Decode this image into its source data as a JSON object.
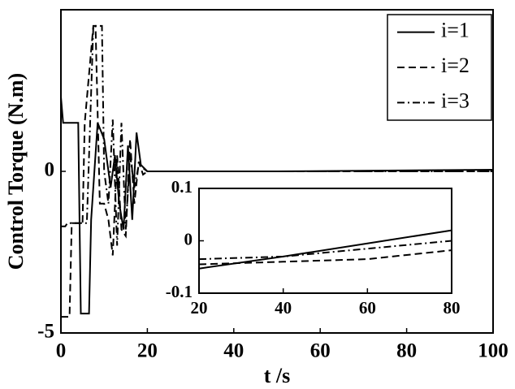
{
  "chart_data": [
    {
      "type": "line",
      "ylabel": "Control Torque (N.m)",
      "xlabel": "t /s",
      "xlim": [
        0,
        100
      ],
      "xticks": [
        0,
        20,
        40,
        60,
        80,
        100
      ],
      "ylim": [
        -5,
        5
      ],
      "yticks": [
        -5,
        0
      ],
      "legend": "upper right",
      "series": [
        {
          "name": "i=1",
          "color": "#000000",
          "dash": "solid",
          "x": [
            0,
            0.5,
            4,
            4.3,
            4.6,
            6.5,
            7,
            8.5,
            10,
            11.5,
            12.5,
            13.5,
            14.5,
            15.5,
            16.5,
            17.5,
            18.5,
            20,
            50,
            100
          ],
          "values": [
            2.3,
            1.5,
            1.5,
            -1.5,
            -4.4,
            -4.4,
            -1.5,
            1.5,
            1,
            -0.5,
            0.5,
            -1,
            -1.8,
            0.8,
            -1.5,
            1.2,
            0.2,
            0,
            0,
            0.05
          ]
        },
        {
          "name": "i=2",
          "color": "#000000",
          "dash": "dashed",
          "x": [
            0,
            2,
            2.5,
            5,
            5.5,
            7.5,
            8,
            9,
            10,
            11,
            12,
            13,
            14,
            15,
            16,
            17,
            18,
            19,
            20,
            100
          ],
          "values": [
            -4.5,
            -4.5,
            -1.6,
            -1.6,
            1.5,
            4.5,
            4.5,
            -1,
            -1,
            -1.5,
            -2.6,
            0.5,
            -1.8,
            -2,
            1,
            -1,
            0.3,
            -0.1,
            0,
            0
          ]
        },
        {
          "name": "i=3",
          "color": "#000000",
          "dash": "dashdot",
          "x": [
            0,
            1,
            1.5,
            6,
            7.5,
            9.5,
            10,
            11,
            12,
            13,
            14,
            15,
            16,
            17,
            18,
            20,
            100
          ],
          "values": [
            -1.7,
            -1.7,
            -1.6,
            -1.6,
            4.5,
            4.5,
            0,
            -1,
            1.6,
            -2.3,
            1.5,
            -1.8,
            0.5,
            -0.5,
            0.2,
            0,
            0
          ]
        }
      ]
    },
    {
      "type": "line",
      "xlim": [
        20,
        80
      ],
      "xticks": [
        20,
        40,
        60,
        80
      ],
      "ylim": [
        -0.1,
        0.1
      ],
      "yticks": [
        -0.1,
        0,
        0.1
      ],
      "series": [
        {
          "color": "#000000",
          "dash": "solid",
          "x": [
            20,
            40,
            60,
            80
          ],
          "values": [
            -0.053,
            -0.03,
            -0.005,
            0.02
          ]
        },
        {
          "color": "#000000",
          "dash": "dashed",
          "x": [
            20,
            40,
            60,
            80
          ],
          "values": [
            -0.045,
            -0.04,
            -0.035,
            -0.018
          ]
        },
        {
          "color": "#000000",
          "dash": "dashdot",
          "x": [
            20,
            40,
            60,
            80
          ],
          "values": [
            -0.035,
            -0.03,
            -0.015,
            0
          ]
        }
      ]
    }
  ]
}
